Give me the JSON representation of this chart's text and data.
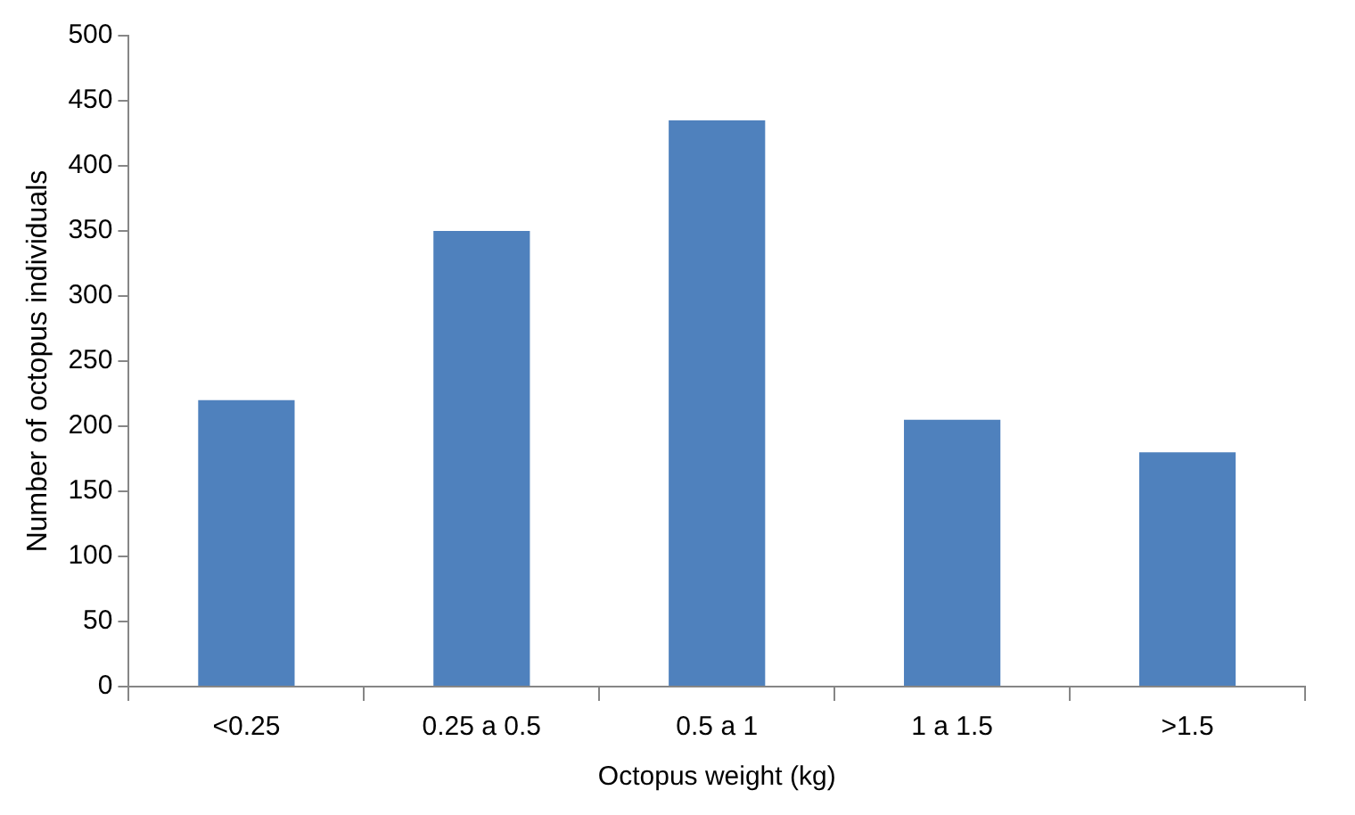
{
  "chart_data": {
    "type": "bar",
    "xlabel": "Octopus weight (kg)",
    "ylabel": "Number of octopus individuals",
    "categories": [
      "<0.25",
      "0.25 a 0.5",
      "0.5 a 1",
      "1 a 1.5",
      ">1.5"
    ],
    "values": [
      220,
      350,
      435,
      205,
      180
    ],
    "color": "#4f81bd",
    "ylim": [
      0,
      500
    ],
    "yticks": [
      0,
      50,
      100,
      150,
      200,
      250,
      300,
      350,
      400,
      450,
      500
    ]
  }
}
